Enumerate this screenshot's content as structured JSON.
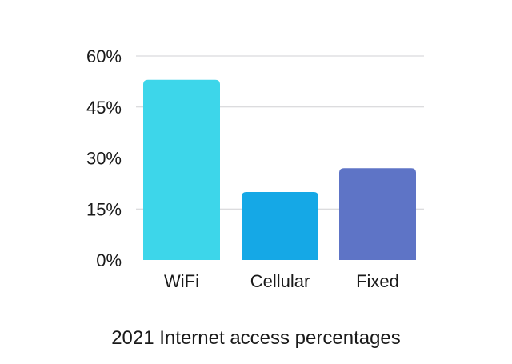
{
  "chart_data": {
    "type": "bar",
    "title": "2021 Internet access percentages",
    "categories": [
      "WiFi",
      "Cellular",
      "Fixed"
    ],
    "values": [
      53,
      20,
      27
    ],
    "ylim": [
      0,
      60
    ],
    "yticks": [
      "0%",
      "15%",
      "30%",
      "45%",
      "60%"
    ],
    "ytick_values": [
      0,
      15,
      30,
      45,
      60
    ],
    "xlabel": "",
    "ylabel": "",
    "grid": true,
    "legend": "none",
    "colors": [
      "#3dd6ea",
      "#15a8e6",
      "#5e74c6"
    ]
  }
}
